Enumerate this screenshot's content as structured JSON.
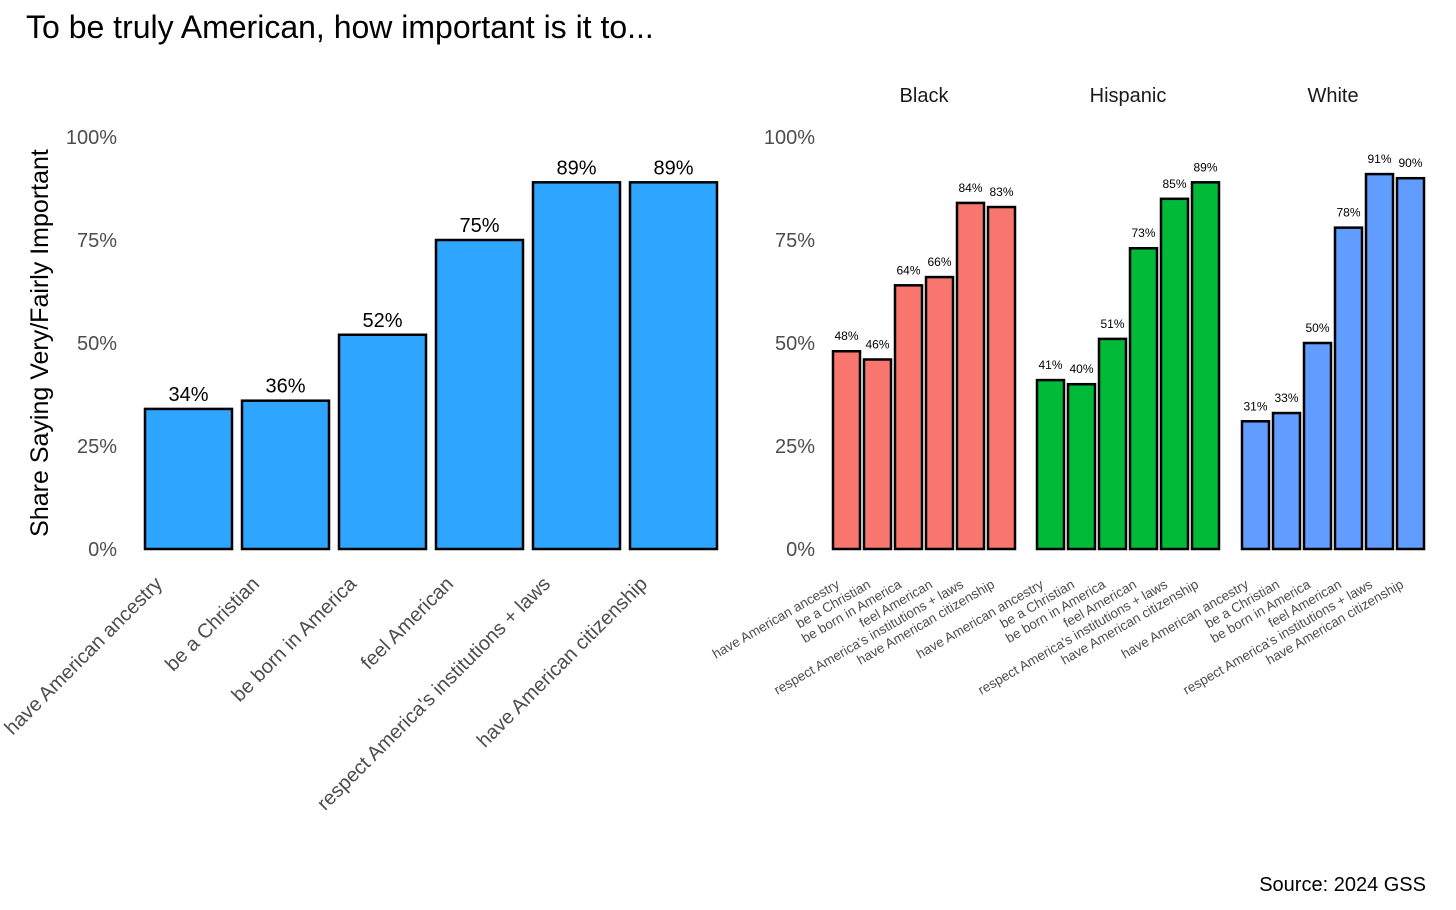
{
  "title": "To be truly American, how important is it to...",
  "source": "Source: 2024 GSS",
  "chart_data": [
    {
      "type": "bar",
      "ylabel": "Share Saying Very/Fairly Important",
      "ylim": [
        0,
        100
      ],
      "yticks": [
        "0%",
        "25%",
        "50%",
        "75%",
        "100%"
      ],
      "yticks_values": [
        0,
        25,
        50,
        75,
        100
      ],
      "categories": [
        "have American ancestry",
        "be a Christian",
        "be born in America",
        "feel American",
        "respect America's institutions + laws",
        "have American citizenship"
      ],
      "values": [
        34,
        36,
        52,
        75,
        89,
        89
      ],
      "labels": [
        "34%",
        "36%",
        "52%",
        "75%",
        "89%",
        "89%"
      ],
      "color": "#2ea6ff",
      "grid": false
    },
    {
      "type": "bar",
      "ylim": [
        0,
        100
      ],
      "yticks": [
        "0%",
        "25%",
        "50%",
        "75%",
        "100%"
      ],
      "yticks_values": [
        0,
        25,
        50,
        75,
        100
      ],
      "categories": [
        "have American ancestry",
        "be a Christian",
        "be born in America",
        "feel American",
        "respect America's institutions + laws",
        "have American citizenship"
      ],
      "grid": false,
      "facets": [
        {
          "name": "Black",
          "color": "#f8766d",
          "values": [
            48,
            46,
            64,
            66,
            84,
            83
          ],
          "labels": [
            "48%",
            "46%",
            "64%",
            "66%",
            "84%",
            "83%"
          ]
        },
        {
          "name": "Hispanic",
          "color": "#00ba38",
          "values": [
            41,
            40,
            51,
            73,
            85,
            89
          ],
          "labels": [
            "41%",
            "40%",
            "51%",
            "73%",
            "85%",
            "89%"
          ]
        },
        {
          "name": "White",
          "color": "#619cff",
          "values": [
            31,
            33,
            50,
            78,
            91,
            90
          ],
          "labels": [
            "31%",
            "33%",
            "50%",
            "78%",
            "91%",
            "90%"
          ]
        }
      ]
    }
  ]
}
